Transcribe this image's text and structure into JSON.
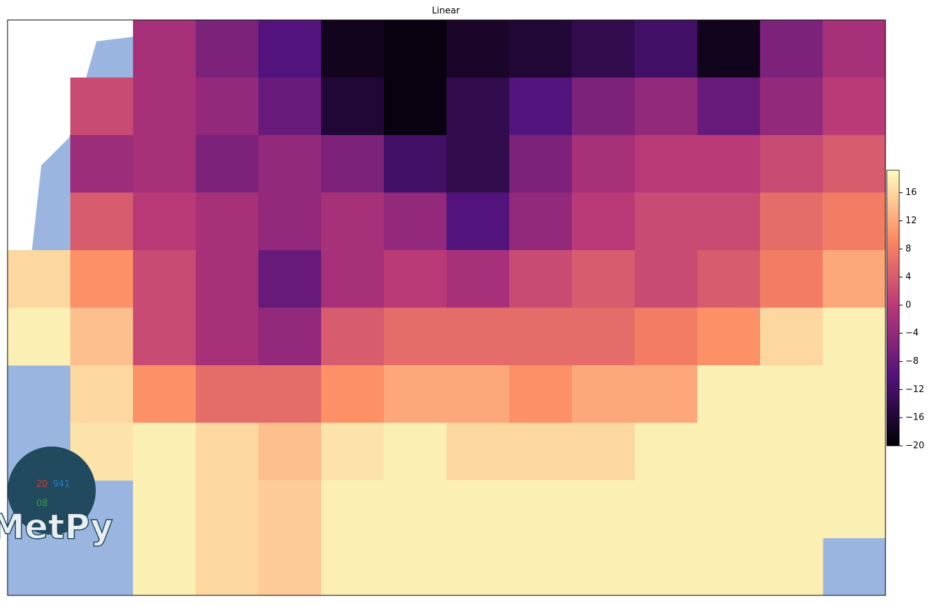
{
  "chart_data": {
    "type": "heatmap",
    "title": "Linear",
    "colormap": "magma",
    "clim": [
      -20,
      19.2
    ],
    "cticks": [
      {
        "value": -20,
        "label": "−20"
      },
      {
        "value": -16,
        "label": "−16"
      },
      {
        "value": -12,
        "label": "−12"
      },
      {
        "value": -8,
        "label": "−8"
      },
      {
        "value": -4,
        "label": "−4"
      },
      0,
      4,
      8,
      12,
      16
    ],
    "grid": [
      [
        null,
        null,
        -2,
        -6,
        -10,
        -18,
        -19,
        -17,
        -16,
        -14,
        -12,
        -18,
        -6,
        -2
      ],
      [
        null,
        2,
        -2,
        -4,
        -8,
        -16,
        -19,
        -14,
        -10,
        -6,
        -4,
        -8,
        -4,
        0
      ],
      [
        null,
        -3,
        -2,
        -6,
        -4,
        -6,
        -12,
        -14,
        -6,
        -2,
        0,
        0,
        2,
        4
      ],
      [
        null,
        4,
        0,
        -2,
        -4,
        -2,
        -4,
        -10,
        -4,
        0,
        2,
        2,
        6,
        8
      ],
      [
        16,
        10,
        2,
        -2,
        -8,
        -2,
        0,
        -2,
        2,
        4,
        2,
        4,
        8,
        12
      ],
      [
        18,
        14,
        2,
        -2,
        -4,
        4,
        6,
        6,
        6,
        6,
        8,
        10,
        16,
        18
      ],
      [
        null,
        16,
        10,
        6,
        6,
        10,
        12,
        12,
        10,
        12,
        12,
        18,
        18,
        18
      ],
      [
        null,
        17,
        18,
        16,
        14,
        17,
        18,
        16,
        16,
        16,
        18,
        18,
        18,
        18
      ],
      [
        null,
        null,
        18,
        16,
        15,
        18,
        18,
        18,
        18,
        18,
        18,
        18,
        18,
        18
      ],
      [
        null,
        null,
        18,
        16,
        15,
        18,
        18,
        18,
        18,
        18,
        18,
        18,
        18,
        null
      ]
    ]
  },
  "logo": {
    "text": "MetPy",
    "temp": "20",
    "pressure": "941",
    "dewpoint": "08"
  }
}
